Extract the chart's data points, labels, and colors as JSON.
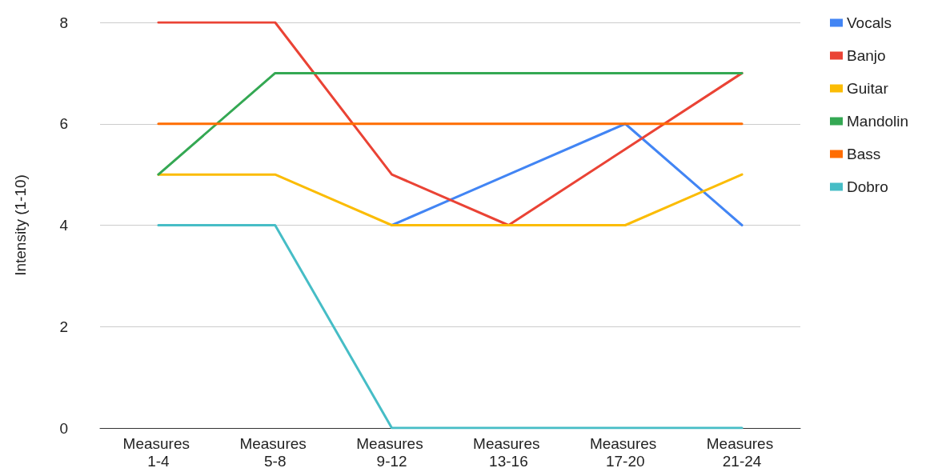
{
  "chart_data": {
    "type": "line",
    "ylabel": "Intensity (1-10)",
    "categories": [
      "Measures 1-4",
      "Measures 5-8",
      "Measures 9-12",
      "Measures 13-16",
      "Measures 17-20",
      "Measures 21-24"
    ],
    "series": [
      {
        "name": "Vocals",
        "color": "#4285f4",
        "values": [
          null,
          null,
          4,
          5,
          6,
          4
        ]
      },
      {
        "name": "Banjo",
        "color": "#ea4335",
        "values": [
          8,
          8,
          5,
          4,
          5.5,
          7
        ]
      },
      {
        "name": "Guitar",
        "color": "#fbbc04",
        "values": [
          5,
          5,
          4,
          4,
          4,
          5
        ]
      },
      {
        "name": "Mandolin",
        "color": "#34a853",
        "values": [
          5,
          7,
          7,
          7,
          7,
          7
        ]
      },
      {
        "name": "Bass",
        "color": "#ff6d01",
        "values": [
          6,
          6,
          6,
          6,
          6,
          6
        ]
      },
      {
        "name": "Dobro",
        "color": "#46bdc6",
        "values": [
          4,
          4,
          0,
          0,
          0,
          0
        ]
      }
    ],
    "ylim": [
      0,
      8
    ],
    "yticks": [
      0,
      2,
      4,
      6,
      8
    ],
    "grid": "y",
    "legend": "top right",
    "marker": "none",
    "line_style": "solid"
  }
}
